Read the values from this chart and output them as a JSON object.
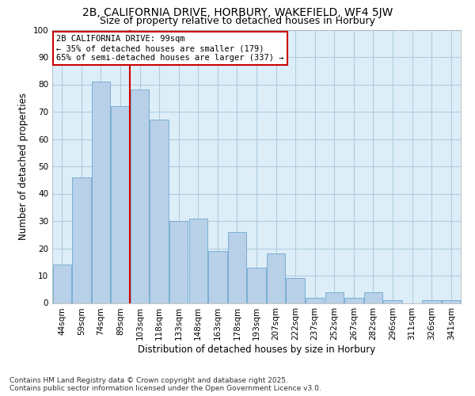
{
  "title_line1": "2B, CALIFORNIA DRIVE, HORBURY, WAKEFIELD, WF4 5JW",
  "title_line2": "Size of property relative to detached houses in Horbury",
  "xlabel": "Distribution of detached houses by size in Horbury",
  "ylabel": "Number of detached properties",
  "categories": [
    "44sqm",
    "59sqm",
    "74sqm",
    "89sqm",
    "103sqm",
    "118sqm",
    "133sqm",
    "148sqm",
    "163sqm",
    "178sqm",
    "193sqm",
    "207sqm",
    "222sqm",
    "237sqm",
    "252sqm",
    "267sqm",
    "282sqm",
    "296sqm",
    "311sqm",
    "326sqm",
    "341sqm"
  ],
  "values": [
    14,
    46,
    81,
    72,
    78,
    67,
    30,
    31,
    19,
    26,
    13,
    18,
    9,
    2,
    4,
    2,
    4,
    1,
    0,
    1,
    1
  ],
  "bar_color": "#b8d0e8",
  "bar_edge_color": "#7aafd4",
  "vline_x": 4.0,
  "vline_color": "#cc0000",
  "annotation_text": "2B CALIFORNIA DRIVE: 99sqm\n← 35% of detached houses are smaller (179)\n65% of semi-detached houses are larger (337) →",
  "annotation_box_facecolor": "#ffffff",
  "annotation_box_edgecolor": "#cc0000",
  "ylim": [
    0,
    100
  ],
  "yticks": [
    0,
    10,
    20,
    30,
    40,
    50,
    60,
    70,
    80,
    90,
    100
  ],
  "plot_bg_color": "#ddeef8",
  "fig_bg_color": "#ffffff",
  "grid_color": "#b0cce0",
  "footnote": "Contains HM Land Registry data © Crown copyright and database right 2025.\nContains public sector information licensed under the Open Government Licence v3.0.",
  "title1_fontsize": 10,
  "title2_fontsize": 9,
  "axis_label_fontsize": 8.5,
  "tick_fontsize": 7.5,
  "annot_fontsize": 7.5,
  "footnote_fontsize": 6.5
}
